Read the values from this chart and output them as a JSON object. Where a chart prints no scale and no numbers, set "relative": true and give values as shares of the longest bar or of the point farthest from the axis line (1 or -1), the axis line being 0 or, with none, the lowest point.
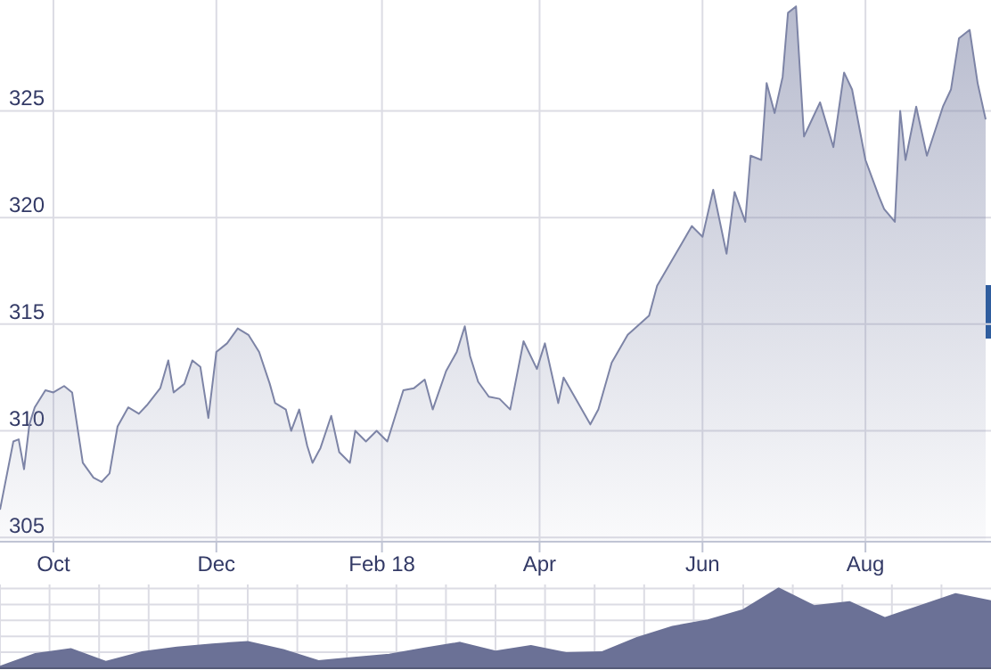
{
  "chart_data": [
    {
      "type": "area",
      "grid": true,
      "xlim": [
        "2017-09-11",
        "2018-09-17"
      ],
      "ylim": [
        304.8,
        330.2
      ],
      "yticks": [
        305,
        310,
        315,
        320,
        325
      ],
      "xticks": [
        {
          "value": "2017-10-01",
          "label": "Oct"
        },
        {
          "value": "2017-12-01",
          "label": "Dec"
        },
        {
          "value": "2018-02-01",
          "label": "Feb 18"
        },
        {
          "value": "2018-04-01",
          "label": "Apr"
        },
        {
          "value": "2018-06-01",
          "label": "Jun"
        },
        {
          "value": "2018-08-01",
          "label": "Aug"
        }
      ],
      "series": [
        {
          "color": "#7d84a6",
          "x": [
            "2017-09-11",
            "2017-09-16",
            "2017-09-18",
            "2017-09-20",
            "2017-09-22",
            "2017-09-24",
            "2017-09-28",
            "2017-10-01",
            "2017-10-05",
            "2017-10-08",
            "2017-10-12",
            "2017-10-16",
            "2017-10-19",
            "2017-10-22",
            "2017-10-25",
            "2017-10-29",
            "2017-11-02",
            "2017-11-05",
            "2017-11-10",
            "2017-11-13",
            "2017-11-15",
            "2017-11-19",
            "2017-11-22",
            "2017-11-25",
            "2017-11-28",
            "2017-12-01",
            "2017-12-05",
            "2017-12-09",
            "2017-12-13",
            "2017-12-17",
            "2017-12-21",
            "2017-12-23",
            "2017-12-27",
            "2017-12-29",
            "2018-01-01",
            "2018-01-04",
            "2018-01-06",
            "2018-01-09",
            "2018-01-13",
            "2018-01-16",
            "2018-01-20",
            "2018-01-22",
            "2018-01-26",
            "2018-01-30",
            "2018-02-03",
            "2018-02-06",
            "2018-02-09",
            "2018-02-13",
            "2018-02-17",
            "2018-02-20",
            "2018-02-25",
            "2018-03-01",
            "2018-03-04",
            "2018-03-06",
            "2018-03-09",
            "2018-03-13",
            "2018-03-17",
            "2018-03-21",
            "2018-03-26",
            "2018-03-31",
            "2018-04-03",
            "2018-04-08",
            "2018-04-10",
            "2018-04-20",
            "2018-04-23",
            "2018-04-28",
            "2018-05-04",
            "2018-05-12",
            "2018-05-15",
            "2018-05-22",
            "2018-05-28",
            "2018-06-01",
            "2018-06-05",
            "2018-06-10",
            "2018-06-13",
            "2018-06-17",
            "2018-06-19",
            "2018-06-23",
            "2018-06-25",
            "2018-06-28",
            "2018-07-01",
            "2018-07-03",
            "2018-07-06",
            "2018-07-09",
            "2018-07-12",
            "2018-07-15",
            "2018-07-20",
            "2018-07-24",
            "2018-07-27",
            "2018-08-01",
            "2018-08-06",
            "2018-08-08",
            "2018-08-12",
            "2018-08-14",
            "2018-08-16",
            "2018-08-20",
            "2018-08-24",
            "2018-08-30",
            "2018-09-02",
            "2018-09-05",
            "2018-09-09",
            "2018-09-12",
            "2018-09-15"
          ],
          "values": [
            306.3,
            309.5,
            309.6,
            308.2,
            310.3,
            311.1,
            311.9,
            311.8,
            312.1,
            311.8,
            308.5,
            307.8,
            307.6,
            308.0,
            310.2,
            311.1,
            310.8,
            311.2,
            312.0,
            313.3,
            311.8,
            312.2,
            313.3,
            313.0,
            310.6,
            313.7,
            314.1,
            314.8,
            314.5,
            313.7,
            312.2,
            311.3,
            311.0,
            310.0,
            311.0,
            309.3,
            308.5,
            309.2,
            310.7,
            309.0,
            308.5,
            310.0,
            309.5,
            310.0,
            309.5,
            310.7,
            311.9,
            312.0,
            312.4,
            311.0,
            312.8,
            313.7,
            314.9,
            313.5,
            312.3,
            311.6,
            311.5,
            311.0,
            314.2,
            312.9,
            314.1,
            311.3,
            312.5,
            310.3,
            311.0,
            313.2,
            314.5,
            315.4,
            316.8,
            318.3,
            319.6,
            319.1,
            321.3,
            318.3,
            321.2,
            319.8,
            322.9,
            322.7,
            326.3,
            324.9,
            326.6,
            329.6,
            329.9,
            323.8,
            324.6,
            325.4,
            323.3,
            326.8,
            326.0,
            322.7,
            321.0,
            320.4,
            319.8,
            325.0,
            322.7,
            325.2,
            322.9,
            325.2,
            326.0,
            328.4,
            328.8,
            326.3,
            324.6
          ]
        }
      ]
    },
    {
      "type": "area",
      "relative": true,
      "grid": true,
      "categories": [
        null,
        null,
        null,
        null,
        null,
        null,
        null,
        null,
        null,
        null,
        null,
        null,
        null,
        null,
        null,
        null,
        null,
        null,
        null,
        null,
        null,
        null,
        null,
        null,
        null,
        null,
        null,
        null,
        null
      ],
      "series": [
        {
          "color": "#6b7196",
          "values": [
            0.02,
            0.18,
            0.24,
            0.08,
            0.2,
            0.26,
            0.3,
            0.33,
            0.23,
            0.09,
            0.13,
            0.17,
            0.25,
            0.32,
            0.21,
            0.28,
            0.19,
            0.2,
            0.38,
            0.52,
            0.6,
            0.73,
            1.0,
            0.78,
            0.83,
            0.63,
            0.78,
            0.93,
            0.84
          ]
        }
      ]
    }
  ]
}
